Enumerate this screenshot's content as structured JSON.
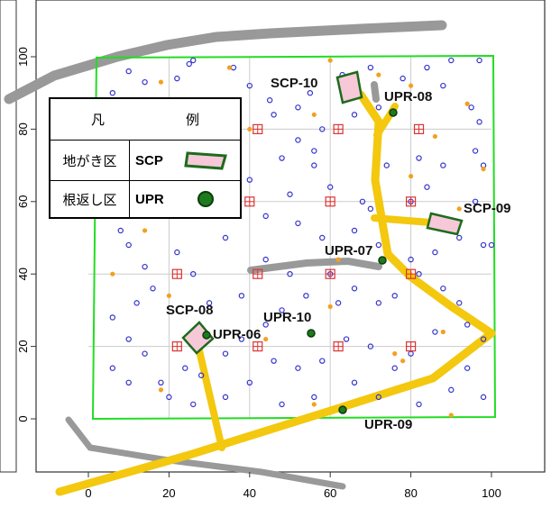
{
  "colors": {
    "boundary": "#22dd22",
    "grid": "#cccccc",
    "road": "#999999",
    "trail": "#f3c80e",
    "scp_fill": "#f7c8d8",
    "scp_border": "#1d6b1d",
    "upr_fill": "#1e7a1e",
    "blue_point": "#3333cc",
    "orange_point": "#f2a11f",
    "red_plot": "#dd3333"
  },
  "axes": {
    "x_ticks": [
      "0",
      "20",
      "40",
      "60",
      "80",
      "100"
    ],
    "y_ticks": [
      "0",
      "20",
      "40",
      "60",
      "80",
      "100"
    ]
  },
  "sites": {
    "scp": [
      {
        "label": "SCP-10",
        "x": 65,
        "y": 92
      },
      {
        "label": "SCP-09",
        "x": 90,
        "y": 54
      },
      {
        "label": "SCP-08",
        "x": 27,
        "y": 23
      }
    ],
    "upr": [
      {
        "label": "UPR-08",
        "x": 76,
        "y": 85
      },
      {
        "label": "UPR-07",
        "x": 73,
        "y": 44
      },
      {
        "label": "UPR-10",
        "x": 55,
        "y": 24
      },
      {
        "label": "UPR-06",
        "x": 28,
        "y": 23
      },
      {
        "label": "UPR-09",
        "x": 63,
        "y": 3
      }
    ]
  },
  "legend": {
    "title_left": "凡",
    "title_right": "例",
    "rows": [
      {
        "name": "地がき区",
        "code": "SCP",
        "symbol": "scp"
      },
      {
        "name": "根返し区",
        "code": "UPR",
        "symbol": "upr"
      }
    ]
  }
}
